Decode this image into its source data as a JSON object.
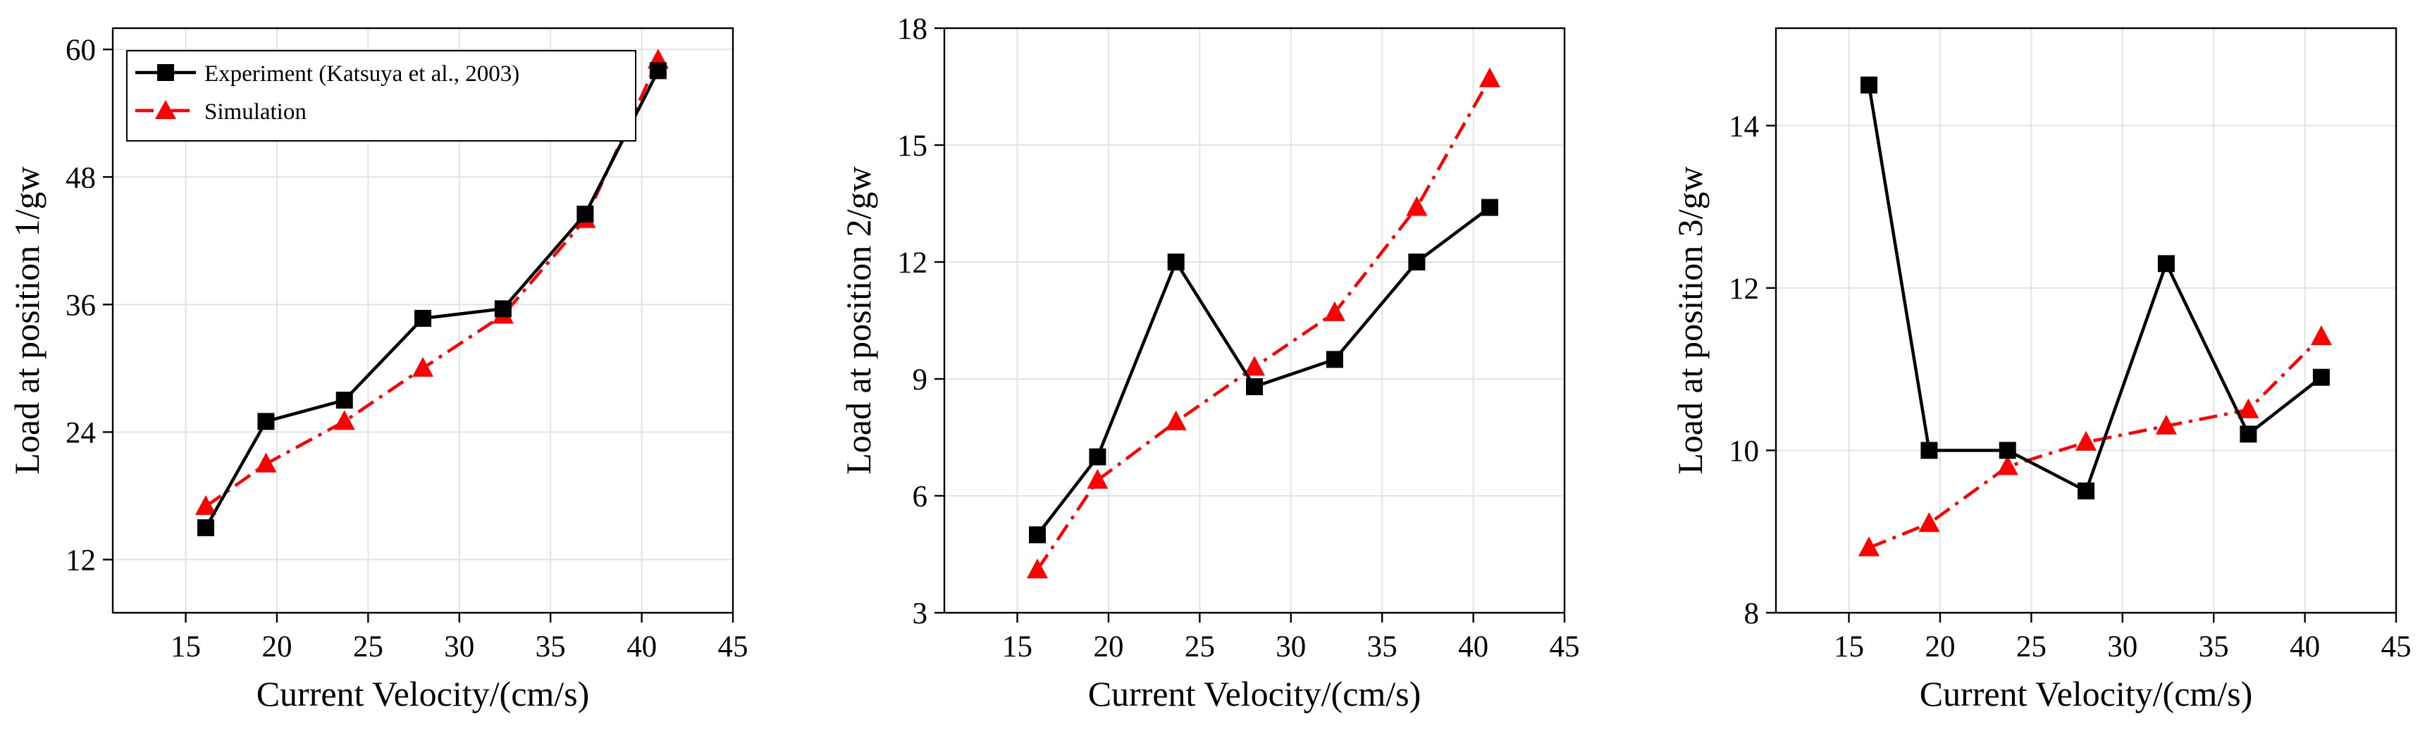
{
  "chart_data": [
    {
      "type": "line",
      "x": [
        16.1,
        19.4,
        23.7,
        28.0,
        32.4,
        36.9,
        40.9
      ],
      "xlim": [
        11,
        45
      ],
      "xticks": [
        15,
        20,
        25,
        30,
        35,
        40,
        45
      ],
      "xlabel": "Current Velocity/(cm/s)",
      "ylabel": "Load at position 1/gw",
      "ylim": [
        7,
        62
      ],
      "yticks": [
        12,
        24,
        36,
        48,
        60
      ],
      "grid": true,
      "legend_position": "top-left",
      "series": [
        {
          "name": "Experiment (Katsuya et al., 2003)",
          "color": "#000000",
          "marker": "square",
          "style": "solid",
          "values": [
            15.0,
            25.0,
            27.0,
            34.7,
            35.6,
            44.5,
            58.0
          ]
        },
        {
          "name": "Simulation",
          "color": "#ff0000",
          "marker": "triangle",
          "style": "dash-dot",
          "values": [
            17.0,
            21.0,
            25.0,
            30.0,
            35.0,
            44.0,
            59.0
          ]
        }
      ]
    },
    {
      "type": "line",
      "x": [
        16.1,
        19.4,
        23.7,
        28.0,
        32.4,
        36.9,
        40.9
      ],
      "xlim": [
        11,
        45
      ],
      "xticks": [
        15,
        20,
        25,
        30,
        35,
        40,
        45
      ],
      "xlabel": "Current Velocity/(cm/s)",
      "ylabel": "Load at position 2/gw",
      "ylim": [
        3,
        18
      ],
      "yticks": [
        3,
        6,
        9,
        12,
        15,
        18
      ],
      "grid": true,
      "series": [
        {
          "name": "Experiment (Katsuya et al., 2003)",
          "color": "#000000",
          "marker": "square",
          "style": "solid",
          "values": [
            5.0,
            7.0,
            12.0,
            8.8,
            9.5,
            12.0,
            13.4
          ]
        },
        {
          "name": "Simulation",
          "color": "#ff0000",
          "marker": "triangle",
          "style": "dash-dot",
          "values": [
            4.1,
            6.4,
            7.9,
            9.3,
            10.7,
            13.4,
            16.7
          ]
        }
      ]
    },
    {
      "type": "line",
      "x": [
        16.1,
        19.4,
        23.7,
        28.0,
        32.4,
        36.9,
        40.9
      ],
      "xlim": [
        11,
        45
      ],
      "xticks": [
        15,
        20,
        25,
        30,
        35,
        40,
        45
      ],
      "xlabel": "Current Velocity/(cm/s)",
      "ylabel": "Load at position 3/gw",
      "ylim": [
        8,
        15.2
      ],
      "yticks": [
        8,
        10,
        12,
        14
      ],
      "grid": true,
      "series": [
        {
          "name": "Experiment (Katsuya et al., 2003)",
          "color": "#000000",
          "marker": "square",
          "style": "solid",
          "values": [
            14.5,
            10.0,
            10.0,
            9.5,
            12.3,
            10.2,
            10.9
          ]
        },
        {
          "name": "Simulation",
          "color": "#ff0000",
          "marker": "triangle",
          "style": "dash-dot",
          "values": [
            8.8,
            9.1,
            9.8,
            10.1,
            10.3,
            10.5,
            11.4
          ]
        }
      ]
    }
  ]
}
